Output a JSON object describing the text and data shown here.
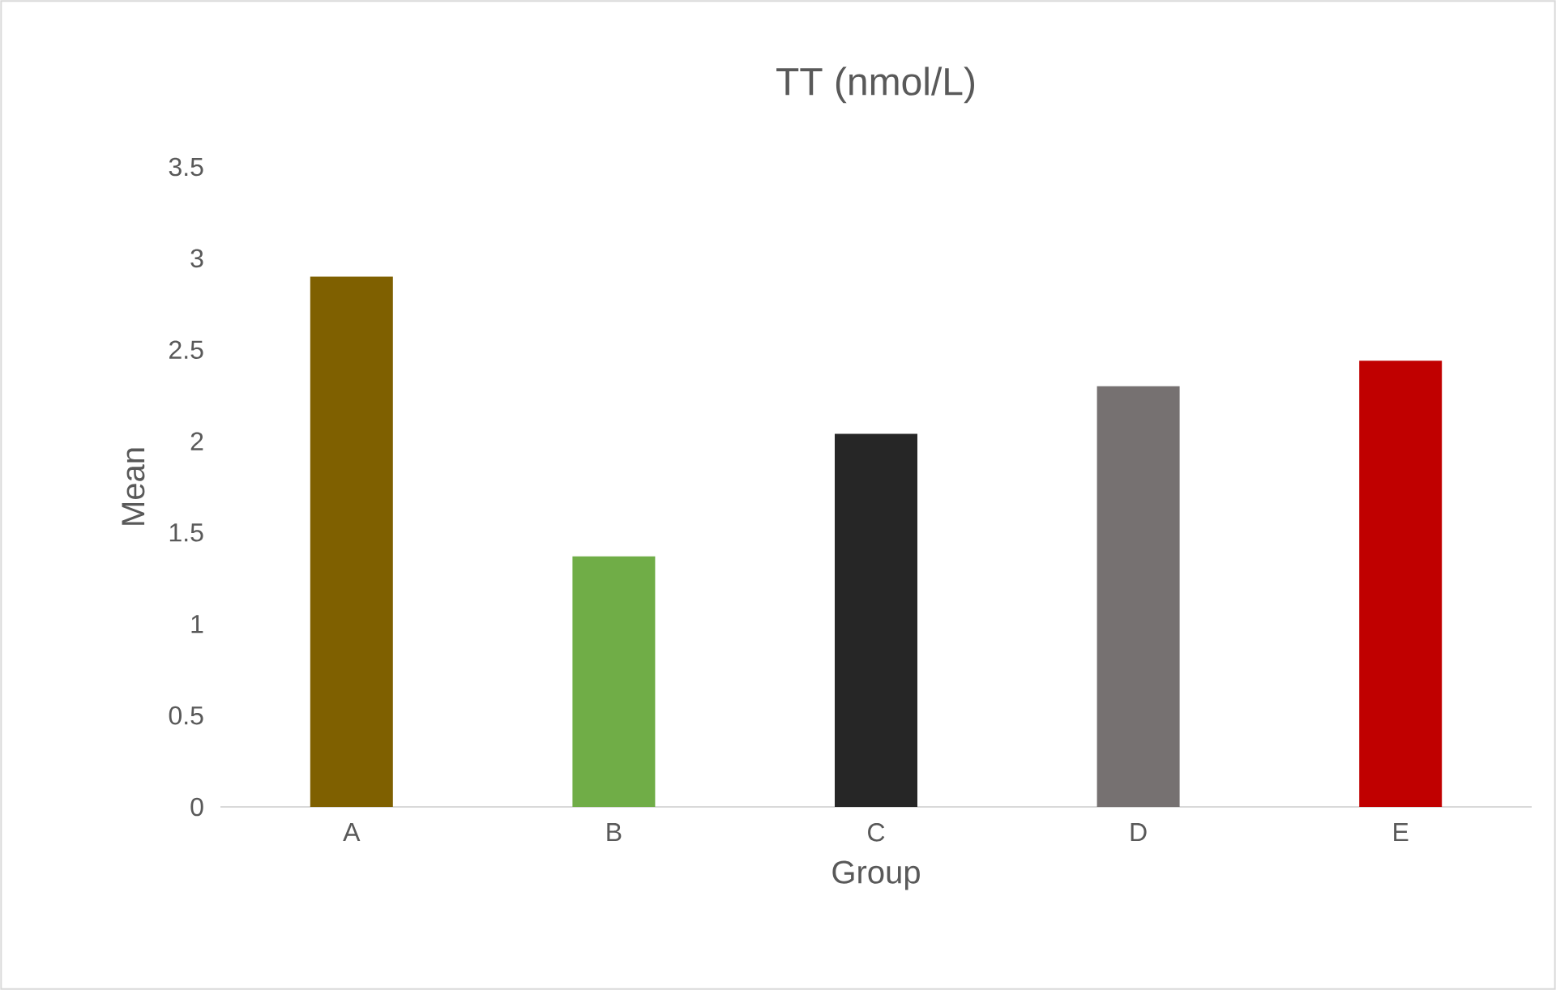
{
  "chart_data": {
    "type": "bar",
    "title": "TT (nmol/L)",
    "xlabel": "Group",
    "ylabel": "Mean",
    "categories": [
      "A",
      "B",
      "C",
      "D",
      "E"
    ],
    "values": [
      2.9,
      1.37,
      2.04,
      2.3,
      2.44
    ],
    "colors": [
      "#7f6000",
      "#70ad47",
      "#262626",
      "#767171",
      "#c00000"
    ],
    "ylim": [
      0,
      3.5
    ],
    "yticks": [
      0,
      0.5,
      1,
      1.5,
      2,
      2.5,
      3,
      3.5
    ]
  }
}
